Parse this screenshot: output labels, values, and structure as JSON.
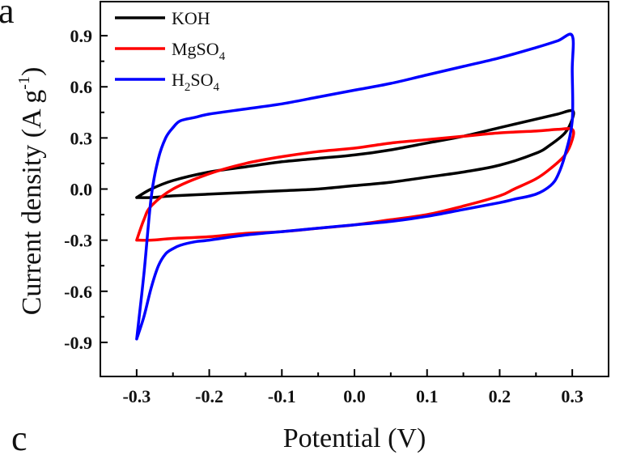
{
  "panel_labels": {
    "top": "a",
    "bottom": "c"
  },
  "chart_data": {
    "type": "line",
    "xlabel": "Potential (V)",
    "ylabel": {
      "main": "Current density (A g",
      "sup": "-1",
      "close": ")"
    },
    "xlim": [
      -0.35,
      0.35
    ],
    "ylim": [
      -1.1,
      1.1
    ],
    "xticks": [
      -0.3,
      -0.2,
      -0.1,
      0.0,
      0.1,
      0.2,
      0.3
    ],
    "xtick_labels": [
      "-0.3",
      "-0.2",
      "-0.1",
      "0.0",
      "0.1",
      "0.2",
      "0.3"
    ],
    "yticks": [
      -0.9,
      -0.6,
      -0.3,
      0.0,
      0.3,
      0.6,
      0.9
    ],
    "ytick_labels": [
      "-0.9",
      "-0.6",
      "-0.3",
      "0.0",
      "0.3",
      "0.6",
      "0.9"
    ],
    "grid": false,
    "legend_position": "top-left",
    "series": [
      {
        "name": "KOH",
        "legend_parts": [
          [
            "KOH",
            false
          ]
        ],
        "color": "#000000",
        "x": [
          -0.3,
          -0.28,
          -0.25,
          -0.2,
          -0.15,
          -0.1,
          -0.05,
          0.0,
          0.05,
          0.1,
          0.15,
          0.2,
          0.25,
          0.28,
          0.3,
          0.3,
          0.29,
          0.27,
          0.25,
          0.2,
          0.15,
          0.1,
          0.05,
          0.0,
          -0.05,
          -0.1,
          -0.15,
          -0.2,
          -0.25,
          -0.28,
          -0.3
        ],
        "y": [
          -0.05,
          0.0,
          0.05,
          0.1,
          0.13,
          0.16,
          0.18,
          0.2,
          0.23,
          0.27,
          0.31,
          0.36,
          0.41,
          0.44,
          0.46,
          0.41,
          0.33,
          0.26,
          0.21,
          0.14,
          0.1,
          0.07,
          0.04,
          0.02,
          0.0,
          -0.01,
          -0.02,
          -0.03,
          -0.04,
          -0.05,
          -0.05
        ]
      },
      {
        "name": "MgSO4",
        "legend_parts": [
          [
            "MgSO",
            false
          ],
          [
            "4",
            true
          ]
        ],
        "color": "#ff0000",
        "x": [
          -0.3,
          -0.29,
          -0.28,
          -0.25,
          -0.2,
          -0.15,
          -0.1,
          -0.05,
          0.0,
          0.05,
          0.1,
          0.15,
          0.2,
          0.25,
          0.28,
          0.3,
          0.3,
          0.29,
          0.27,
          0.25,
          0.22,
          0.2,
          0.15,
          0.1,
          0.05,
          0.0,
          -0.05,
          -0.1,
          -0.15,
          -0.2,
          -0.25,
          -0.28,
          -0.3
        ],
        "y": [
          -0.3,
          -0.18,
          -0.1,
          0.0,
          0.09,
          0.15,
          0.19,
          0.22,
          0.24,
          0.27,
          0.29,
          0.31,
          0.33,
          0.34,
          0.35,
          0.35,
          0.29,
          0.2,
          0.12,
          0.06,
          0.0,
          -0.04,
          -0.1,
          -0.15,
          -0.18,
          -0.21,
          -0.23,
          -0.25,
          -0.26,
          -0.28,
          -0.29,
          -0.3,
          -0.3
        ]
      },
      {
        "name": "H2SO4",
        "legend_parts": [
          [
            "H",
            false
          ],
          [
            "2",
            true
          ],
          [
            "SO",
            false
          ],
          [
            "4",
            true
          ]
        ],
        "color": "#0000ff",
        "x": [
          -0.3,
          -0.29,
          -0.28,
          -0.27,
          -0.26,
          -0.25,
          -0.24,
          -0.22,
          -0.2,
          -0.15,
          -0.1,
          -0.05,
          0.0,
          0.05,
          0.1,
          0.15,
          0.2,
          0.25,
          0.28,
          0.3,
          0.3,
          0.3,
          0.29,
          0.28,
          0.27,
          0.25,
          0.22,
          0.2,
          0.15,
          0.1,
          0.05,
          0.0,
          -0.05,
          -0.1,
          -0.15,
          -0.2,
          -0.22,
          -0.24,
          -0.25,
          -0.26,
          -0.27,
          -0.28,
          -0.29,
          -0.3
        ],
        "y": [
          -0.88,
          -0.5,
          -0.05,
          0.18,
          0.3,
          0.36,
          0.4,
          0.42,
          0.44,
          0.47,
          0.5,
          0.54,
          0.58,
          0.62,
          0.67,
          0.72,
          0.77,
          0.83,
          0.87,
          0.9,
          0.7,
          0.4,
          0.2,
          0.08,
          0.02,
          -0.03,
          -0.06,
          -0.08,
          -0.12,
          -0.16,
          -0.19,
          -0.21,
          -0.23,
          -0.25,
          -0.27,
          -0.3,
          -0.31,
          -0.33,
          -0.35,
          -0.38,
          -0.45,
          -0.58,
          -0.75,
          -0.88
        ]
      }
    ]
  }
}
